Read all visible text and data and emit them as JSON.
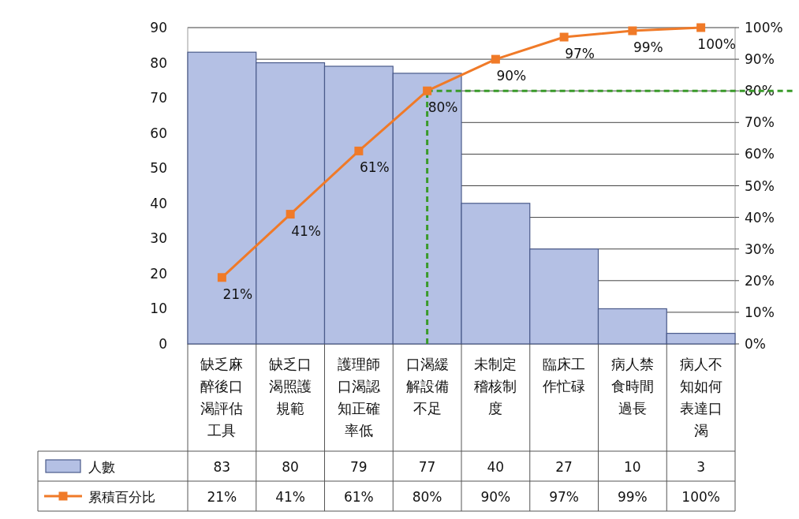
{
  "chart_data": {
    "type": "bar",
    "categories": [
      "缺乏麻醉後口渴評估工具",
      "缺乏口渴照護規範",
      "護理師口渴認知正確率低",
      "口渴緩解設備不足",
      "未制定稽核制度",
      "臨床工作忙碌",
      "病人禁食時間過長",
      "病人不知如何表達口渴"
    ],
    "ylim": [
      0,
      90
    ],
    "yticks": [
      0,
      10,
      20,
      30,
      40,
      50,
      60,
      70,
      80,
      90
    ],
    "y2lim": [
      0,
      100
    ],
    "y2ticks": [
      {
        "value": 0,
        "label": "0%"
      },
      {
        "value": 10,
        "label": "10%"
      },
      {
        "value": 20,
        "label": "20%"
      },
      {
        "value": 30,
        "label": "30%"
      },
      {
        "value": 40,
        "label": "40%"
      },
      {
        "value": 50,
        "label": "50%"
      },
      {
        "value": 60,
        "label": "60%"
      },
      {
        "value": 70,
        "label": "70%"
      },
      {
        "value": 80,
        "label": "80%"
      },
      {
        "value": 90,
        "label": "90%"
      },
      {
        "value": 100,
        "label": "100%"
      }
    ],
    "series": [
      {
        "name": "人數",
        "color": "#b4c0e4",
        "values": [
          83,
          80,
          79,
          77,
          40,
          27,
          10,
          3
        ]
      },
      {
        "name": "累積百分比",
        "type": "line",
        "axis": "y2",
        "color": "#f07a28",
        "values": [
          21,
          41,
          61,
          80,
          90,
          97,
          99,
          100
        ],
        "value_labels": [
          "21%",
          "41%",
          "61%",
          "80%",
          "90%",
          "97%",
          "99%",
          "100%"
        ]
      }
    ],
    "data_labels": true,
    "marker": "square",
    "grid": "y",
    "legend": "bottom",
    "ref_lines": [
      {
        "axis": "y2",
        "value": 80,
        "color": "#3a9a2a",
        "line_style": "dashed"
      },
      {
        "axis": "x",
        "value": "口渴緩解設備不足",
        "color": "#3a9a2a",
        "line_style": "dashed"
      }
    ]
  }
}
